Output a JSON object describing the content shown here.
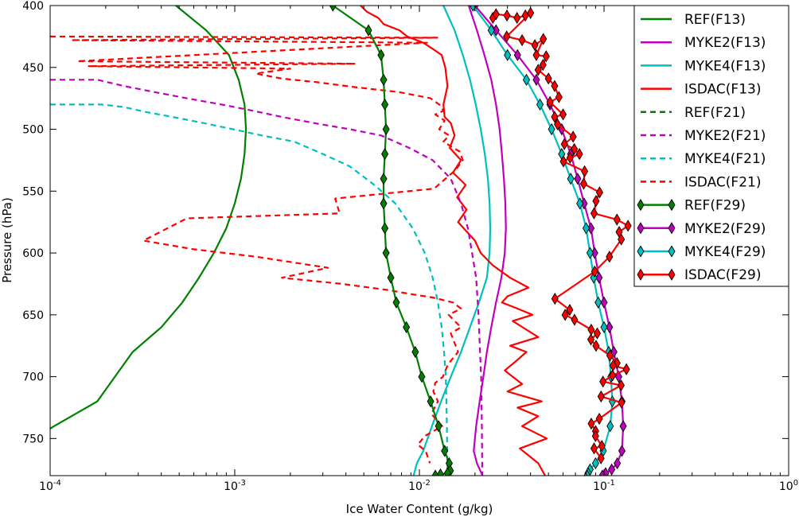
{
  "chart_data": {
    "type": "line",
    "title": "",
    "xlabel": "Ice Water Content (g/kg)",
    "ylabel": "Pressure (hPa)",
    "xscale": "log",
    "xlim": [
      0.0001,
      1
    ],
    "ylim": [
      780,
      400
    ],
    "yaxis_inverted": true,
    "x_ticks": [
      {
        "value": 0.0001,
        "base": "10",
        "exp": "-4"
      },
      {
        "value": 0.001,
        "base": "10",
        "exp": "-3"
      },
      {
        "value": 0.01,
        "base": "10",
        "exp": "-2"
      },
      {
        "value": 0.1,
        "base": "10",
        "exp": "-1"
      },
      {
        "value": 1,
        "base": "10",
        "exp": "0"
      }
    ],
    "y_ticks": [
      400,
      450,
      500,
      550,
      600,
      650,
      700,
      750
    ],
    "grid": false,
    "legend_position": "top-right",
    "series": [
      {
        "name": "REF(F13)",
        "color": "#008000",
        "style": "solid",
        "marker": "none",
        "x": [
          0.00048,
          0.0007,
          0.00093,
          0.00105,
          0.00113,
          0.00115,
          0.00113,
          0.00108,
          0.001,
          0.0009,
          0.00077,
          0.00064,
          0.00052,
          0.0004,
          0.00028,
          0.00018,
          0.000105,
          0.0001
        ],
        "y": [
          400,
          420,
          440,
          460,
          480,
          500,
          520,
          540,
          560,
          580,
          600,
          620,
          640,
          660,
          680,
          720,
          740,
          742
        ]
      },
      {
        "name": "MYKE2(F13)",
        "color": "#bf00bf",
        "style": "solid",
        "marker": "none",
        "x": [
          0.0185,
          0.0205,
          0.0225,
          0.0245,
          0.026,
          0.0272,
          0.028,
          0.0287,
          0.0292,
          0.0294,
          0.029,
          0.0278,
          0.026,
          0.0245,
          0.0232,
          0.0222,
          0.0212,
          0.0203,
          0.0197,
          0.0205,
          0.022
        ],
        "y": [
          400,
          420,
          440,
          460,
          480,
          500,
          520,
          540,
          560,
          580,
          600,
          620,
          640,
          660,
          680,
          700,
          720,
          740,
          760,
          770,
          780
        ]
      },
      {
        "name": "MYKE4(F13)",
        "color": "#00bfbf",
        "style": "solid",
        "marker": "none",
        "x": [
          0.0135,
          0.0155,
          0.0172,
          0.0188,
          0.0202,
          0.0215,
          0.0226,
          0.0235,
          0.024,
          0.0242,
          0.024,
          0.0232,
          0.021,
          0.0188,
          0.0168,
          0.0148,
          0.0131,
          0.0117,
          0.0105,
          0.0097,
          0.0093
        ],
        "y": [
          400,
          420,
          440,
          460,
          480,
          500,
          520,
          540,
          560,
          580,
          600,
          620,
          640,
          660,
          680,
          700,
          720,
          740,
          760,
          770,
          780
        ]
      },
      {
        "name": "ISDAC(F13)",
        "color": "#ff0000",
        "style": "solid",
        "marker": "none",
        "x": [
          0.0048,
          0.0052,
          0.006,
          0.0064,
          0.0078,
          0.0086,
          0.0105,
          0.0118,
          0.0132,
          0.0138,
          0.0142,
          0.0135,
          0.0137,
          0.0148,
          0.0155,
          0.0146,
          0.0168,
          0.0152,
          0.0178,
          0.016,
          0.018,
          0.0162,
          0.02,
          0.0215,
          0.025,
          0.031,
          0.039,
          0.03,
          0.028,
          0.034,
          0.041,
          0.032,
          0.038,
          0.044,
          0.031,
          0.038,
          0.033,
          0.029,
          0.032,
          0.036,
          0.03,
          0.046,
          0.034,
          0.044,
          0.036,
          0.049,
          0.035,
          0.044,
          0.048
        ],
        "y": [
          400,
          405,
          410,
          415,
          420,
          425,
          430,
          435,
          440,
          450,
          465,
          480,
          490,
          495,
          505,
          515,
          525,
          535,
          545,
          555,
          565,
          575,
          590,
          600,
          610,
          620,
          628,
          635,
          640,
          645,
          650,
          655,
          662,
          668,
          675,
          680,
          688,
          695,
          700,
          706,
          712,
          720,
          725,
          732,
          740,
          750,
          758,
          770,
          780
        ]
      },
      {
        "name": "REF(F21)",
        "color": "#008000",
        "style": "dashed",
        "marker": "none",
        "x": [],
        "y": []
      },
      {
        "name": "MYKE2(F21)",
        "color": "#bf00bf",
        "style": "dashed",
        "marker": "none",
        "x": [
          0.0001,
          0.000115,
          0.00018,
          0.00025,
          0.00037,
          0.00055,
          0.00085,
          0.00125,
          0.0018,
          0.0027,
          0.0042,
          0.0062,
          0.0088,
          0.0118,
          0.0148,
          0.0168,
          0.0183,
          0.0193,
          0.0203,
          0.0209,
          0.0213,
          0.0216,
          0.0218,
          0.0219
        ],
        "y": [
          460,
          460,
          460,
          465,
          470,
          475,
          480,
          485,
          490,
          495,
          500,
          505,
          515,
          525,
          540,
          560,
          580,
          600,
          620,
          650,
          680,
          700,
          740,
          780
        ]
      },
      {
        "name": "MYKE4(F21)",
        "color": "#00bfbf",
        "style": "dashed",
        "marker": "none",
        "x": [
          0.0001,
          0.000115,
          0.00019,
          0.00025,
          0.00033,
          0.00046,
          0.00068,
          0.00098,
          0.0014,
          0.0021,
          0.003,
          0.0042,
          0.0057,
          0.0074,
          0.0092,
          0.0107,
          0.0118,
          0.0126,
          0.0132,
          0.0136,
          0.0139,
          0.0141,
          0.0142
        ],
        "y": [
          480,
          480,
          480,
          482,
          486,
          490,
          495,
          500,
          505,
          510,
          520,
          530,
          545,
          560,
          580,
          600,
          620,
          640,
          660,
          680,
          700,
          740,
          780
        ]
      },
      {
        "name": "ISDAC(F21)",
        "color": "#ff0000",
        "style": "dashed",
        "marker": "none",
        "x": [
          0.0001,
          0.0125,
          0.00013,
          0.011,
          0.00014,
          0.0045,
          0.00016,
          0.002,
          0.0013,
          0.0018,
          0.0028,
          0.0045,
          0.0078,
          0.0115,
          0.0128,
          0.0135,
          0.0122,
          0.0137,
          0.0128,
          0.0145,
          0.0135,
          0.0165,
          0.0172,
          0.0157,
          0.012,
          0.0035,
          0.0037,
          0.00055,
          0.00032,
          0.0006,
          0.0013,
          0.0032,
          0.0018,
          0.0038,
          0.0068,
          0.0088,
          0.0118,
          0.0152,
          0.0168,
          0.0144,
          0.0155,
          0.0168,
          0.0148,
          0.0162,
          0.0143,
          0.0134,
          0.0122,
          0.0119,
          0.0126,
          0.0116,
          0.0133,
          0.0107,
          0.0098,
          0.0108,
          0.0114
        ],
        "y": [
          425,
          426,
          428,
          430,
          445,
          447,
          449,
          451,
          455,
          459,
          462,
          466,
          470,
          475,
          480,
          485,
          488,
          493,
          500,
          505,
          510,
          518,
          525,
          533,
          548,
          556,
          568,
          572,
          590,
          597,
          603,
          612,
          620,
          625,
          630,
          633,
          636,
          640,
          645,
          650,
          655,
          660,
          665,
          680,
          690,
          700,
          705,
          712,
          720,
          730,
          740,
          748,
          755,
          760,
          770
        ]
      },
      {
        "name": "REF(F29)",
        "color": "#008000",
        "style": "solid",
        "marker": "diamond",
        "x": [
          0.0034,
          0.0053,
          0.0062,
          0.0064,
          0.0065,
          0.0066,
          0.0065,
          0.0064,
          0.0064,
          0.0065,
          0.0066,
          0.007,
          0.0075,
          0.0085,
          0.0095,
          0.0103,
          0.0115,
          0.0127,
          0.0137,
          0.0145,
          0.0147,
          0.0142,
          0.013,
          0.0122
        ],
        "y": [
          400,
          420,
          440,
          460,
          480,
          500,
          520,
          540,
          560,
          580,
          600,
          620,
          640,
          660,
          680,
          700,
          720,
          740,
          760,
          770,
          776,
          778,
          779,
          780
        ]
      },
      {
        "name": "MYKE2(F29)",
        "color": "#bf00bf",
        "style": "solid",
        "marker": "diamond",
        "x": [
          0.02,
          0.026,
          0.034,
          0.043,
          0.051,
          0.059,
          0.066,
          0.072,
          0.078,
          0.085,
          0.089,
          0.094,
          0.1,
          0.107,
          0.113,
          0.12,
          0.125,
          0.127,
          0.125,
          0.118,
          0.11,
          0.102,
          0.098
        ],
        "y": [
          400,
          420,
          440,
          460,
          480,
          500,
          520,
          540,
          560,
          580,
          600,
          620,
          640,
          660,
          680,
          700,
          720,
          740,
          760,
          770,
          775,
          778,
          780
        ]
      },
      {
        "name": "MYKE4(F29)",
        "color": "#00bfbf",
        "style": "solid",
        "marker": "diamond",
        "x": [
          0.0195,
          0.0245,
          0.03,
          0.038,
          0.045,
          0.052,
          0.059,
          0.066,
          0.074,
          0.08,
          0.084,
          0.088,
          0.093,
          0.1,
          0.106,
          0.109,
          0.111,
          0.108,
          0.099,
          0.09,
          0.084,
          0.082,
          0.081
        ],
        "y": [
          400,
          420,
          440,
          460,
          480,
          500,
          520,
          540,
          560,
          580,
          600,
          620,
          640,
          660,
          680,
          700,
          720,
          740,
          760,
          770,
          775,
          778,
          780
        ]
      },
      {
        "name": "ISDAC(F29)",
        "color": "#ff0000",
        "style": "solid",
        "marker": "diamond",
        "x": [
          0.025,
          0.026,
          0.0298,
          0.0338,
          0.0375,
          0.04,
          0.0297,
          0.036,
          0.0422,
          0.0469,
          0.043,
          0.0486,
          0.0467,
          0.044,
          0.05,
          0.054,
          0.057,
          0.051,
          0.06,
          0.054,
          0.056,
          0.068,
          0.061,
          0.069,
          0.0736,
          0.0655,
          0.0603,
          0.0785,
          0.0776,
          0.0946,
          0.0905,
          0.0883,
          0.1175,
          0.1349,
          0.1208,
          0.124,
          0.107,
          0.089,
          0.0542,
          0.0652,
          0.0616,
          0.0692,
          0.0852,
          0.0919,
          0.0849,
          0.0905,
          0.1077,
          0.1176,
          0.112,
          0.1322,
          0.1112,
          0.0987,
          0.1237,
          0.0964,
          0.1244,
          0.0943,
          0.0853,
          0.09,
          0.0899,
          0.0973,
          0.0883,
          0.0963
        ],
        "y": [
          410,
          407,
          408,
          410,
          408,
          406,
          425,
          428,
          432,
          427,
          440,
          441,
          448,
          452,
          459,
          465,
          474,
          478,
          488,
          490,
          496,
          506,
          512,
          516,
          520,
          523,
          526,
          534,
          544,
          551,
          558,
          568,
          573,
          578,
          583,
          589,
          603,
          615,
          637,
          646,
          650,
          654,
          662,
          665,
          670,
          675,
          683,
          689,
          691,
          694,
          699,
          704,
          707,
          716,
          721,
          734,
          738,
          744,
          748,
          756,
          758,
          766
        ]
      }
    ],
    "legend": [
      "REF(F13)",
      "MYKE2(F13)",
      "MYKE4(F13)",
      "ISDAC(F13)",
      "REF(F21)",
      "MYKE2(F21)",
      "MYKE4(F21)",
      "ISDAC(F21)",
      "REF(F29)",
      "MYKE2(F29)",
      "MYKE4(F29)",
      "ISDAC(F29)"
    ]
  }
}
